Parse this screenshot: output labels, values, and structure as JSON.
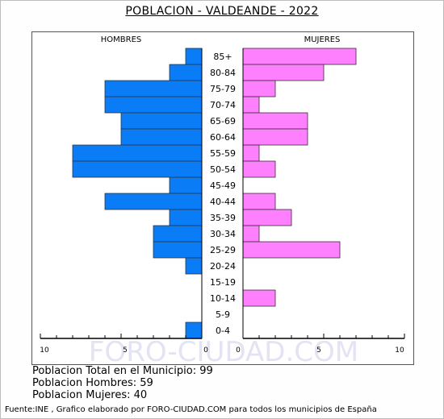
{
  "title": "POBLACION - VALDEANDE - 2022",
  "watermark": "FORO-CIUDAD.COM",
  "chart_data": {
    "type": "bar",
    "orientation": "horizontal-pyramid",
    "categories": [
      "85+",
      "80-84",
      "75-79",
      "70-74",
      "65-69",
      "60-64",
      "55-59",
      "50-54",
      "45-49",
      "40-44",
      "35-39",
      "30-34",
      "25-29",
      "20-24",
      "15-19",
      "10-14",
      "5-9",
      "0-4"
    ],
    "series": [
      {
        "name": "HOMBRES",
        "color": "#0a7cf5",
        "values": [
          1,
          2,
          6,
          6,
          5,
          5,
          8,
          8,
          2,
          6,
          2,
          3,
          3,
          1,
          0,
          0,
          0,
          1
        ]
      },
      {
        "name": "MUJERES",
        "color": "#ff80ff",
        "values": [
          7,
          5,
          2,
          1,
          4,
          4,
          1,
          2,
          0,
          2,
          3,
          1,
          6,
          0,
          0,
          2,
          0,
          0
        ]
      }
    ],
    "xlim": [
      0,
      10
    ],
    "x_ticks_left": [
      "10",
      "5",
      "0"
    ],
    "x_ticks_right": [
      "0",
      "5",
      "10"
    ]
  },
  "stats": {
    "total": "Poblacion Total en el Municipio: 99",
    "hombres": "Poblacion Hombres: 59",
    "mujeres": "Poblacion Mujeres: 40"
  },
  "source": "Fuente:INE , Grafico elaborado por FORO-CIUDAD.COM para todos los municipios de España"
}
